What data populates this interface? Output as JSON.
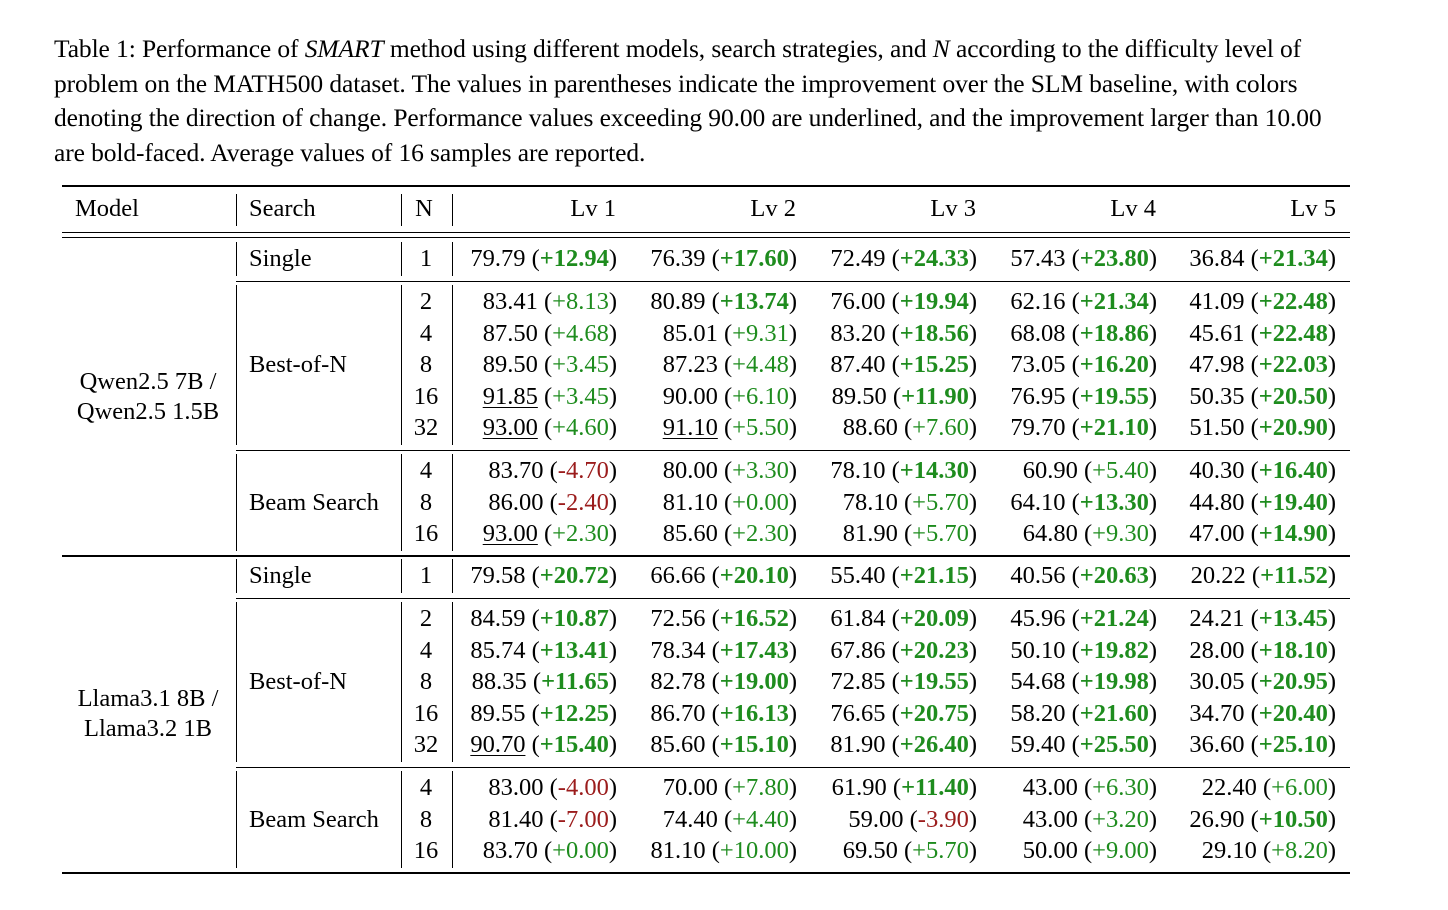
{
  "caption": {
    "label": "Table 1:",
    "pre": "Performance of ",
    "method": "SMART",
    "mid": " method using different models, search strategies, and ",
    "var_n": "N",
    "post": " according to the difficulty level of problem on the MATH500 dataset. The values in parentheses indicate the improvement over the SLM baseline, with colors denoting the direction of change. Performance values exceeding 90.00 are underlined, and the improvement larger than 10.00 are bold-faced. Average values of 16 samples are reported."
  },
  "headers": [
    "Model",
    "Search",
    "N",
    "Lv 1",
    "Lv 2",
    "Lv 3",
    "Lv 4",
    "Lv 5"
  ],
  "colors": {
    "positive": "#1e8c1e",
    "negative": "#9b1c1c"
  },
  "groups": [
    {
      "model": [
        "Qwen2.5 7B /",
        "Qwen2.5 1.5B"
      ],
      "searches": [
        {
          "name": "Single",
          "rows": [
            {
              "n": "1",
              "cells": [
                [
                  "79.79",
                  "+12.94"
                ],
                [
                  "76.39",
                  "+17.60"
                ],
                [
                  "72.49",
                  "+24.33"
                ],
                [
                  "57.43",
                  "+23.80"
                ],
                [
                  "36.84",
                  "+21.34"
                ]
              ]
            }
          ]
        },
        {
          "name": "Best-of-N",
          "rows": [
            {
              "n": "2",
              "cells": [
                [
                  "83.41",
                  "+8.13"
                ],
                [
                  "80.89",
                  "+13.74"
                ],
                [
                  "76.00",
                  "+19.94"
                ],
                [
                  "62.16",
                  "+21.34"
                ],
                [
                  "41.09",
                  "+22.48"
                ]
              ]
            },
            {
              "n": "4",
              "cells": [
                [
                  "87.50",
                  "+4.68"
                ],
                [
                  "85.01",
                  "+9.31"
                ],
                [
                  "83.20",
                  "+18.56"
                ],
                [
                  "68.08",
                  "+18.86"
                ],
                [
                  "45.61",
                  "+22.48"
                ]
              ]
            },
            {
              "n": "8",
              "cells": [
                [
                  "89.50",
                  "+3.45"
                ],
                [
                  "87.23",
                  "+4.48"
                ],
                [
                  "87.40",
                  "+15.25"
                ],
                [
                  "73.05",
                  "+16.20"
                ],
                [
                  "47.98",
                  "+22.03"
                ]
              ]
            },
            {
              "n": "16",
              "cells": [
                [
                  "91.85",
                  "+3.45"
                ],
                [
                  "90.00",
                  "+6.10"
                ],
                [
                  "89.50",
                  "+11.90"
                ],
                [
                  "76.95",
                  "+19.55"
                ],
                [
                  "50.35",
                  "+20.50"
                ]
              ]
            },
            {
              "n": "32",
              "cells": [
                [
                  "93.00",
                  "+4.60"
                ],
                [
                  "91.10",
                  "+5.50"
                ],
                [
                  "88.60",
                  "+7.60"
                ],
                [
                  "79.70",
                  "+21.10"
                ],
                [
                  "51.50",
                  "+20.90"
                ]
              ]
            }
          ]
        },
        {
          "name": "Beam Search",
          "rows": [
            {
              "n": "4",
              "cells": [
                [
                  "83.70",
                  "-4.70"
                ],
                [
                  "80.00",
                  "+3.30"
                ],
                [
                  "78.10",
                  "+14.30"
                ],
                [
                  "60.90",
                  "+5.40"
                ],
                [
                  "40.30",
                  "+16.40"
                ]
              ]
            },
            {
              "n": "8",
              "cells": [
                [
                  "86.00",
                  "-2.40"
                ],
                [
                  "81.10",
                  "+0.00"
                ],
                [
                  "78.10",
                  "+5.70"
                ],
                [
                  "64.10",
                  "+13.30"
                ],
                [
                  "44.80",
                  "+19.40"
                ]
              ]
            },
            {
              "n": "16",
              "cells": [
                [
                  "93.00",
                  "+2.30"
                ],
                [
                  "85.60",
                  "+2.30"
                ],
                [
                  "81.90",
                  "+5.70"
                ],
                [
                  "64.80",
                  "+9.30"
                ],
                [
                  "47.00",
                  "+14.90"
                ]
              ]
            }
          ]
        }
      ]
    },
    {
      "model": [
        "Llama3.1 8B /",
        "Llama3.2 1B"
      ],
      "searches": [
        {
          "name": "Single",
          "rows": [
            {
              "n": "1",
              "cells": [
                [
                  "79.58",
                  "+20.72"
                ],
                [
                  "66.66",
                  "+20.10"
                ],
                [
                  "55.40",
                  "+21.15"
                ],
                [
                  "40.56",
                  "+20.63"
                ],
                [
                  "20.22",
                  "+11.52"
                ]
              ]
            }
          ]
        },
        {
          "name": "Best-of-N",
          "rows": [
            {
              "n": "2",
              "cells": [
                [
                  "84.59",
                  "+10.87"
                ],
                [
                  "72.56",
                  "+16.52"
                ],
                [
                  "61.84",
                  "+20.09"
                ],
                [
                  "45.96",
                  "+21.24"
                ],
                [
                  "24.21",
                  "+13.45"
                ]
              ]
            },
            {
              "n": "4",
              "cells": [
                [
                  "85.74",
                  "+13.41"
                ],
                [
                  "78.34",
                  "+17.43"
                ],
                [
                  "67.86",
                  "+20.23"
                ],
                [
                  "50.10",
                  "+19.82"
                ],
                [
                  "28.00",
                  "+18.10"
                ]
              ]
            },
            {
              "n": "8",
              "cells": [
                [
                  "88.35",
                  "+11.65"
                ],
                [
                  "82.78",
                  "+19.00"
                ],
                [
                  "72.85",
                  "+19.55"
                ],
                [
                  "54.68",
                  "+19.98"
                ],
                [
                  "30.05",
                  "+20.95"
                ]
              ]
            },
            {
              "n": "16",
              "cells": [
                [
                  "89.55",
                  "+12.25"
                ],
                [
                  "86.70",
                  "+16.13"
                ],
                [
                  "76.65",
                  "+20.75"
                ],
                [
                  "58.20",
                  "+21.60"
                ],
                [
                  "34.70",
                  "+20.40"
                ]
              ]
            },
            {
              "n": "32",
              "cells": [
                [
                  "90.70",
                  "+15.40"
                ],
                [
                  "85.60",
                  "+15.10"
                ],
                [
                  "81.90",
                  "+26.40"
                ],
                [
                  "59.40",
                  "+25.50"
                ],
                [
                  "36.60",
                  "+25.10"
                ]
              ]
            }
          ]
        },
        {
          "name": "Beam Search",
          "rows": [
            {
              "n": "4",
              "cells": [
                [
                  "83.00",
                  "-4.00"
                ],
                [
                  "70.00",
                  "+7.80"
                ],
                [
                  "61.90",
                  "+11.40"
                ],
                [
                  "43.00",
                  "+6.30"
                ],
                [
                  "22.40",
                  "+6.00"
                ]
              ]
            },
            {
              "n": "8",
              "cells": [
                [
                  "81.40",
                  "-7.00"
                ],
                [
                  "74.40",
                  "+4.40"
                ],
                [
                  "59.00",
                  "-3.90"
                ],
                [
                  "43.00",
                  "+3.20"
                ],
                [
                  "26.90",
                  "+10.50"
                ]
              ]
            },
            {
              "n": "16",
              "cells": [
                [
                  "83.70",
                  "+0.00"
                ],
                [
                  "81.10",
                  "+10.00"
                ],
                [
                  "69.50",
                  "+5.70"
                ],
                [
                  "50.00",
                  "+9.00"
                ],
                [
                  "29.10",
                  "+8.20"
                ]
              ]
            }
          ]
        }
      ]
    }
  ]
}
